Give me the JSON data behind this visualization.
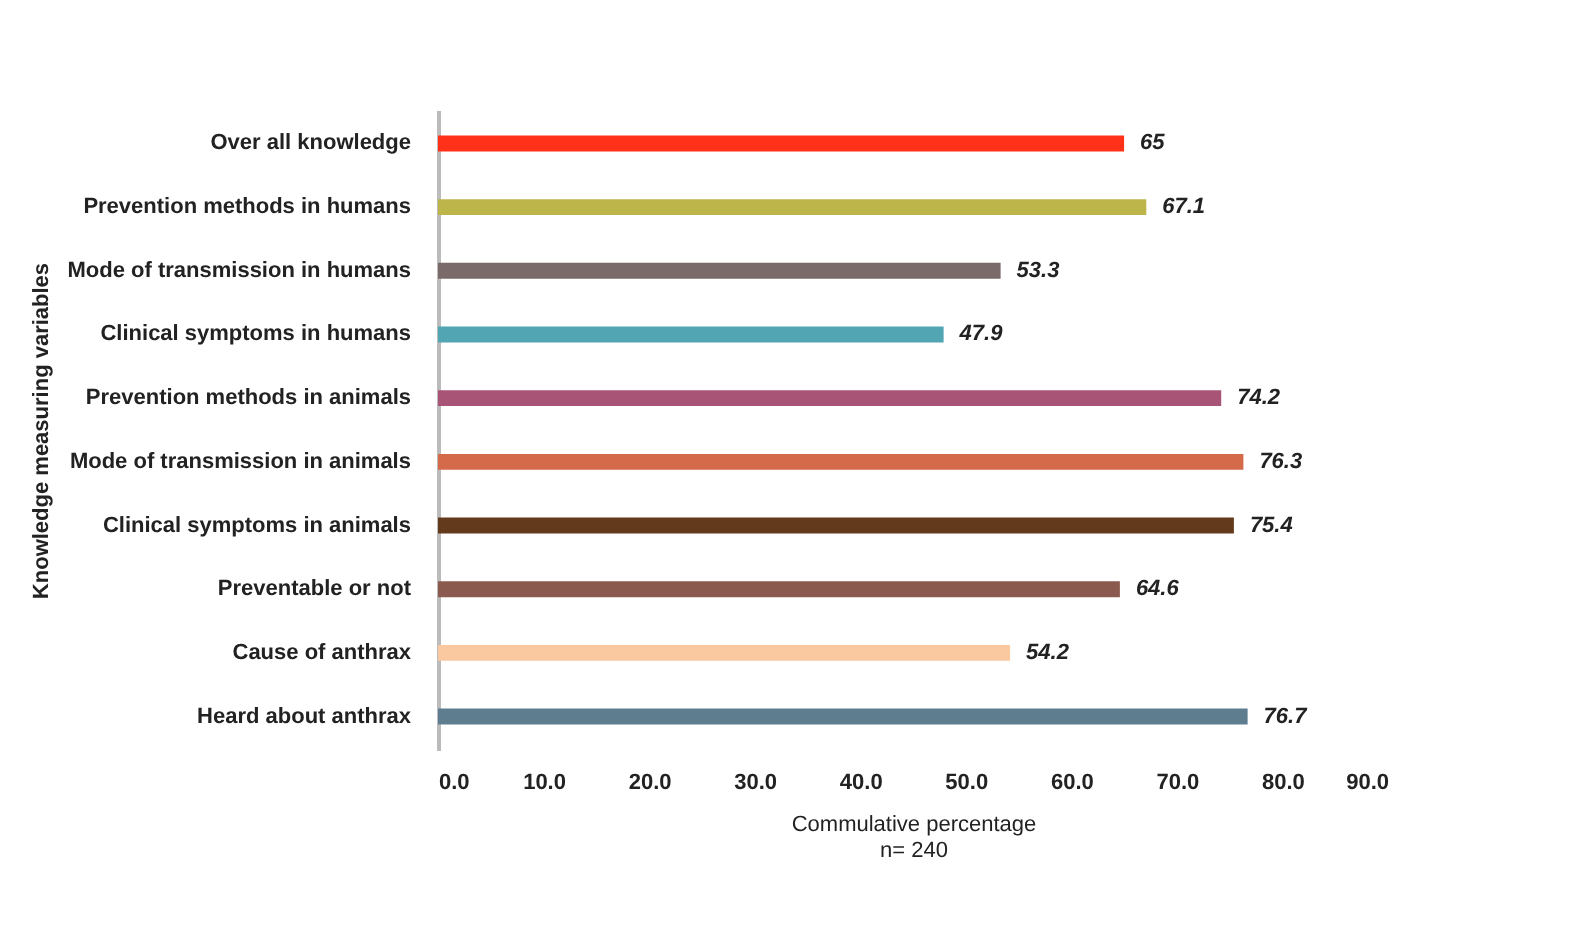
{
  "chart_data": {
    "type": "bar",
    "orientation": "horizontal",
    "xlabel": "Commulative percentage",
    "ylabel": "Knowledge measuring variables",
    "annotations": [
      "n= 240"
    ],
    "categories": [
      "Over all knowledge",
      "Prevention methods in humans",
      "Mode of transmission in humans",
      "Clinical symptoms in humans",
      "Prevention methods in animals",
      "Mode of transmission in animals",
      "Clinical symptoms in animals",
      "Preventable or not",
      "Cause of anthrax",
      "Heard about anthrax"
    ],
    "values": [
      65,
      67.1,
      53.3,
      47.9,
      74.2,
      76.3,
      75.4,
      64.6,
      54.2,
      76.7
    ],
    "colors": [
      "#ff3219",
      "#bdb54a",
      "#7a6a6a",
      "#52a6b4",
      "#a75476",
      "#d56a4a",
      "#643a1c",
      "#8a5a4e",
      "#fbc9a0",
      "#5e7e90"
    ],
    "xlim": [
      0,
      90
    ],
    "xticks": [
      {
        "value": 0,
        "label": "0.0"
      },
      {
        "value": 10,
        "label": "10.0"
      },
      {
        "value": 20,
        "label": "20.0"
      },
      {
        "value": 30,
        "label": "30.0"
      },
      {
        "value": 40,
        "label": "40.0"
      },
      {
        "value": 50,
        "label": "50.0"
      },
      {
        "value": 60,
        "label": "60.0"
      },
      {
        "value": 70,
        "label": "70.0"
      },
      {
        "value": 80,
        "label": "80.0"
      },
      {
        "value": 90,
        "label": "90.0"
      }
    ],
    "data_labels": true,
    "grid": false,
    "legend": false
  }
}
